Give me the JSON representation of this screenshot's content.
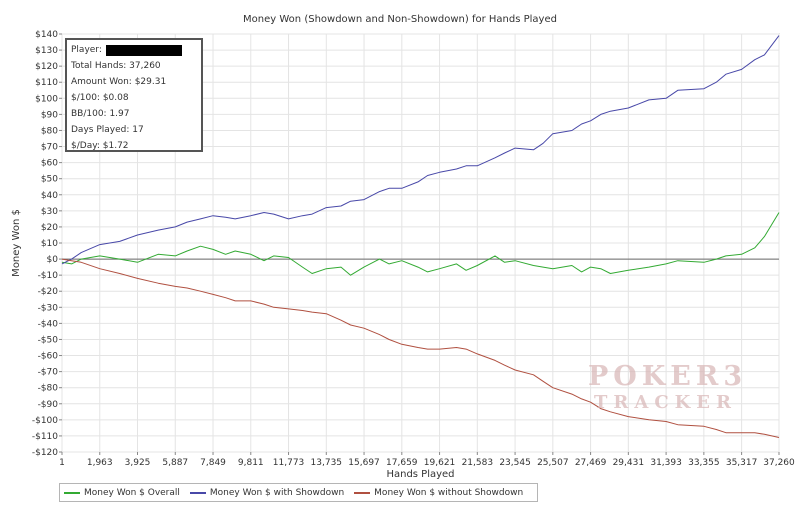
{
  "chart_data": {
    "type": "line",
    "title": "Money Won (Showdown and Non-Showdown) for Hands Played",
    "xlabel": "Hands Played",
    "ylabel": "Money Won $",
    "xlim": [
      1,
      37260
    ],
    "ylim": [
      -120,
      140
    ],
    "x_ticks": [
      1,
      1963,
      3925,
      5887,
      7849,
      9811,
      11773,
      13735,
      15697,
      17659,
      19621,
      21583,
      23545,
      25507,
      27469,
      29431,
      31393,
      33355,
      35317,
      37260
    ],
    "x_tick_labels": [
      "1",
      "1,963",
      "3,925",
      "5,887",
      "7,849",
      "9,811",
      "11,773",
      "13,735",
      "15,697",
      "17,659",
      "19,621",
      "21,583",
      "23,545",
      "25,507",
      "27,469",
      "29,431",
      "31,393",
      "33,355",
      "35,317",
      "37,260"
    ],
    "y_ticks": [
      -120,
      -110,
      -100,
      -90,
      -80,
      -70,
      -60,
      -50,
      -40,
      -30,
      -20,
      -10,
      0,
      10,
      20,
      30,
      40,
      50,
      60,
      70,
      80,
      90,
      100,
      110,
      120,
      130,
      140
    ],
    "y_tick_labels": [
      "-$120",
      "-$110",
      "-$100",
      "-$90",
      "-$80",
      "-$70",
      "-$60",
      "-$50",
      "-$40",
      "-$30",
      "-$20",
      "-$10",
      "$0",
      "$10",
      "$20",
      "$30",
      "$40",
      "$50",
      "$60",
      "$70",
      "$80",
      "$90",
      "$100",
      "$110",
      "$120",
      "$130",
      "$140"
    ],
    "grid": true,
    "legend_position": "bottom-left",
    "series": [
      {
        "name": "Money Won $ Overall",
        "color": "#33aa33",
        "x": [
          1,
          500,
          1000,
          1963,
          3000,
          3925,
          5000,
          5887,
          6500,
          7200,
          7849,
          8500,
          9000,
          9811,
          10500,
          11000,
          11773,
          12500,
          13000,
          13735,
          14500,
          15000,
          15697,
          16500,
          17000,
          17659,
          18500,
          19000,
          19621,
          20500,
          21000,
          21583,
          22500,
          23000,
          23545,
          24500,
          25000,
          25507,
          26500,
          27000,
          27469,
          28000,
          28500,
          29431,
          30500,
          31393,
          32000,
          33355,
          34000,
          34500,
          35317,
          36000,
          36500,
          37260
        ],
        "y": [
          -2,
          -3,
          0,
          2,
          0,
          -2,
          3,
          2,
          5,
          8,
          6,
          3,
          5,
          3,
          -1,
          2,
          1,
          -5,
          -9,
          -6,
          -5,
          -10,
          -5,
          0,
          -3,
          -1,
          -5,
          -8,
          -6,
          -3,
          -7,
          -4,
          2,
          -2,
          -1,
          -4,
          -5,
          -6,
          -4,
          -8,
          -5,
          -6,
          -9,
          -7,
          -5,
          -3,
          -1,
          -2,
          0,
          2,
          3,
          7,
          14,
          29
        ]
      },
      {
        "name": "Money Won $ with Showdown",
        "color": "#4848a8",
        "x": [
          1,
          500,
          1000,
          1963,
          3000,
          3925,
          5000,
          5887,
          6500,
          7200,
          7849,
          8500,
          9000,
          9811,
          10500,
          11000,
          11773,
          12500,
          13000,
          13735,
          14500,
          15000,
          15697,
          16500,
          17000,
          17659,
          18500,
          19000,
          19621,
          20500,
          21000,
          21583,
          22500,
          23000,
          23545,
          24500,
          25000,
          25507,
          26500,
          27000,
          27469,
          28000,
          28500,
          29431,
          30500,
          31393,
          32000,
          33355,
          34000,
          34500,
          35317,
          36000,
          36500,
          37260
        ],
        "y": [
          -3,
          0,
          4,
          9,
          11,
          15,
          18,
          20,
          23,
          25,
          27,
          26,
          25,
          27,
          29,
          28,
          25,
          27,
          28,
          32,
          33,
          36,
          37,
          42,
          44,
          44,
          48,
          52,
          54,
          56,
          58,
          58,
          63,
          66,
          69,
          68,
          72,
          78,
          80,
          84,
          86,
          90,
          92,
          94,
          99,
          100,
          105,
          106,
          110,
          115,
          118,
          124,
          127,
          139
        ]
      },
      {
        "name": "Money Won $ without Showdown",
        "color": "#b05040",
        "x": [
          1,
          500,
          1000,
          1963,
          3000,
          3925,
          5000,
          5887,
          6500,
          7200,
          7849,
          8500,
          9000,
          9811,
          10500,
          11000,
          11773,
          12500,
          13000,
          13735,
          14500,
          15000,
          15697,
          16500,
          17000,
          17659,
          18500,
          19000,
          19621,
          20500,
          21000,
          21583,
          22500,
          23000,
          23545,
          24500,
          25000,
          25507,
          26500,
          27000,
          27469,
          28000,
          28500,
          29431,
          30500,
          31393,
          32000,
          33355,
          34000,
          34500,
          35317,
          36000,
          36500,
          37260
        ],
        "y": [
          0,
          -1,
          -2,
          -6,
          -9,
          -12,
          -15,
          -17,
          -18,
          -20,
          -22,
          -24,
          -26,
          -26,
          -28,
          -30,
          -31,
          -32,
          -33,
          -34,
          -38,
          -41,
          -43,
          -47,
          -50,
          -53,
          -55,
          -56,
          -56,
          -55,
          -56,
          -59,
          -63,
          -66,
          -69,
          -72,
          -76,
          -80,
          -84,
          -87,
          -89,
          -93,
          -95,
          -98,
          -100,
          -101,
          -103,
          -104,
          -106,
          -108,
          -108,
          -108,
          -109,
          -111
        ]
      }
    ]
  },
  "info_box": {
    "player_label": "Player:",
    "total_hands": "Total Hands: 37,260",
    "amount_won": "Amount Won: $29.31",
    "per_100": "$/100: $0.08",
    "bb_100": "BB/100: 1.97",
    "days_played": "Days Played: 17",
    "per_day": "$/Day: $1.72"
  },
  "watermark": {
    "line1": "POKER",
    "line2": "TRACKER",
    "digit": "3"
  }
}
